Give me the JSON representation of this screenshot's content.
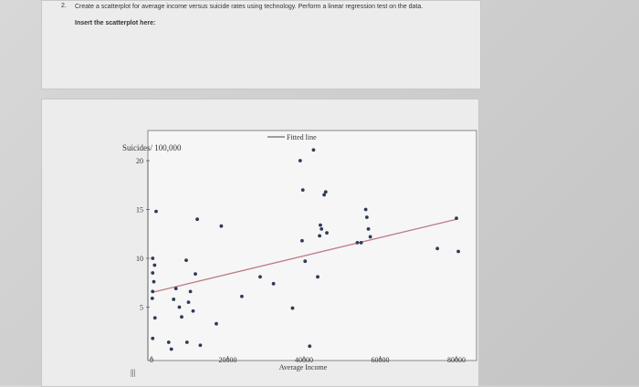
{
  "question": {
    "number": "2.",
    "text": "Create a scatterplot for average income versus suicide rates using technology. Perform a linear regression test on the data.",
    "insert_label": "Insert the scatterplot here:"
  },
  "chart_data": {
    "type": "scatter",
    "title": "",
    "ylabel": "Suicides/ 100,000",
    "xlabel": "Average Income",
    "xlim": [
      0,
      82000
    ],
    "ylim": [
      0,
      21
    ],
    "xticks": [
      0,
      20000,
      40000,
      60000,
      80000
    ],
    "xtick_labels": [
      "0",
      "20000",
      "40000",
      "60000",
      "80000"
    ],
    "yticks": [
      5,
      10,
      15,
      20
    ],
    "ytick_labels": [
      "5",
      "10",
      "15",
      "20"
    ],
    "legend": {
      "label": "Fitted line",
      "position": "top"
    },
    "fitted_line": {
      "x": [
        0,
        80000
      ],
      "y": [
        6.5,
        14.0
      ]
    },
    "colors": {
      "points": "#2f3a56",
      "fit_line": "#c07a86"
    },
    "points": [
      {
        "x": 300,
        "y": 10.0
      },
      {
        "x": 800,
        "y": 9.3
      },
      {
        "x": 300,
        "y": 8.5
      },
      {
        "x": 600,
        "y": 7.6
      },
      {
        "x": 300,
        "y": 6.6
      },
      {
        "x": 200,
        "y": 5.9
      },
      {
        "x": 900,
        "y": 3.9
      },
      {
        "x": 300,
        "y": 1.8
      },
      {
        "x": 1200,
        "y": 14.8
      },
      {
        "x": 4500,
        "y": 1.4
      },
      {
        "x": 5200,
        "y": 0.7
      },
      {
        "x": 5800,
        "y": 5.8
      },
      {
        "x": 6400,
        "y": 6.9
      },
      {
        "x": 7300,
        "y": 5.0
      },
      {
        "x": 7900,
        "y": 4.0
      },
      {
        "x": 9100,
        "y": 9.8
      },
      {
        "x": 9300,
        "y": 1.4
      },
      {
        "x": 9700,
        "y": 5.5
      },
      {
        "x": 10200,
        "y": 6.6
      },
      {
        "x": 10900,
        "y": 4.6
      },
      {
        "x": 11500,
        "y": 8.4
      },
      {
        "x": 12000,
        "y": 14.0
      },
      {
        "x": 12800,
        "y": 1.1
      },
      {
        "x": 17000,
        "y": 3.3
      },
      {
        "x": 18300,
        "y": 13.3
      },
      {
        "x": 23700,
        "y": 6.1
      },
      {
        "x": 28500,
        "y": 8.1
      },
      {
        "x": 32000,
        "y": 7.4
      },
      {
        "x": 37000,
        "y": 4.9
      },
      {
        "x": 39000,
        "y": 20.0
      },
      {
        "x": 39700,
        "y": 17.0
      },
      {
        "x": 39500,
        "y": 11.8
      },
      {
        "x": 40300,
        "y": 9.7
      },
      {
        "x": 41500,
        "y": 1.0
      },
      {
        "x": 42500,
        "y": 21.1
      },
      {
        "x": 43600,
        "y": 8.1
      },
      {
        "x": 44100,
        "y": 12.3
      },
      {
        "x": 44300,
        "y": 13.4
      },
      {
        "x": 44600,
        "y": 13.0
      },
      {
        "x": 45300,
        "y": 16.5
      },
      {
        "x": 45700,
        "y": 16.8
      },
      {
        "x": 46000,
        "y": 12.6
      },
      {
        "x": 54000,
        "y": 11.6
      },
      {
        "x": 55000,
        "y": 11.6
      },
      {
        "x": 56200,
        "y": 15.0
      },
      {
        "x": 56500,
        "y": 14.2
      },
      {
        "x": 56900,
        "y": 13.0
      },
      {
        "x": 57400,
        "y": 12.2
      },
      {
        "x": 75000,
        "y": 11.0
      },
      {
        "x": 80000,
        "y": 14.1
      },
      {
        "x": 80500,
        "y": 10.7
      }
    ]
  }
}
